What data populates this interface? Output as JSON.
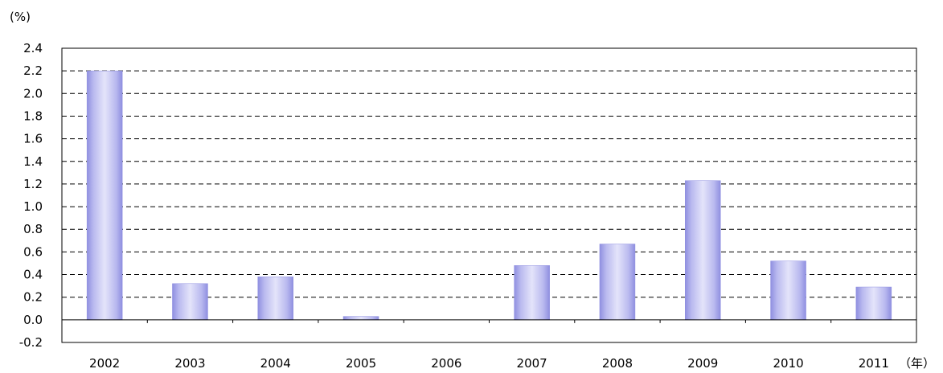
{
  "chart_data": {
    "type": "bar",
    "categories": [
      "2002",
      "2003",
      "2004",
      "2005",
      "2006",
      "2007",
      "2008",
      "2009",
      "2010",
      "2011"
    ],
    "values": [
      2.2,
      0.32,
      0.38,
      0.03,
      0.0,
      0.48,
      0.67,
      1.23,
      0.52,
      0.29
    ],
    "title": "",
    "y_unit_label": "(%)",
    "x_unit_label": "（年）",
    "ylim": [
      -0.2,
      2.4
    ],
    "yticks": [
      2.4,
      2.2,
      2.0,
      1.8,
      1.6,
      1.4,
      1.2,
      1.0,
      0.8,
      0.6,
      0.4,
      0.2,
      0.0,
      -0.2
    ],
    "ytick_labels": [
      "2.4",
      "2.2",
      "2.0",
      "1.8",
      "1.6",
      "1.4",
      "1.2",
      "1.0",
      "0.8",
      "0.6",
      "0.4",
      "0.2",
      "0.0",
      "-0.2"
    ],
    "grid": true,
    "grid_style": "dashed",
    "legend": "none",
    "colors": {
      "bar_fill": "#b9b9ef",
      "bar_stripe": "#8f8fe0",
      "bar_highlight": "#e4e4fa",
      "axis": "#000000",
      "grid": "#000000"
    }
  }
}
